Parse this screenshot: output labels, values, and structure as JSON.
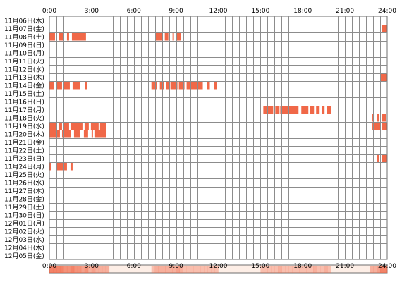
{
  "chart_data": {
    "type": "heatmap",
    "title": "",
    "xlabel": "",
    "ylabel": "",
    "xlim": [
      0,
      24
    ],
    "grid": true,
    "hour_ticks": [
      "0:00",
      "3:00",
      "6:00",
      "9:00",
      "12:00",
      "15:00",
      "18:00",
      "21:00",
      "24:00"
    ],
    "rows": [
      "11月06日(木)",
      "11月07日(金)",
      "11月08日(土)",
      "11月09日(日)",
      "11月10日(月)",
      "11月11日(火)",
      "11月12日(水)",
      "11月13日(木)",
      "11月14日(金)",
      "11月15日(土)",
      "11月16日(日)",
      "11月17日(月)",
      "11月18日(火)",
      "11月19日(水)",
      "11月20日(木)",
      "11月21日(金)",
      "11月22日(土)",
      "11月23日(日)",
      "11月24日(月)",
      "11月25日(火)",
      "11月26日(水)",
      "11月27日(木)",
      "11月28日(金)",
      "11月29日(土)",
      "11月30日(日)",
      "12月01日(月)",
      "12月02日(火)",
      "12月03日(水)",
      "12月04日(木)",
      "12月05日(金)"
    ],
    "activity": [
      [],
      [
        [
          23.6,
          24.0
        ]
      ],
      [
        [
          0.0,
          0.4
        ],
        [
          0.7,
          1.0
        ],
        [
          1.25,
          1.4
        ],
        [
          1.6,
          2.6
        ],
        [
          7.55,
          8.0
        ],
        [
          8.2,
          8.45
        ],
        [
          8.75,
          8.85
        ],
        [
          9.0,
          9.35
        ]
      ],
      [],
      [],
      [],
      [],
      [
        [
          23.55,
          24.0
        ]
      ],
      [
        [
          0.0,
          0.3
        ],
        [
          0.55,
          0.9
        ],
        [
          1.05,
          1.45
        ],
        [
          1.65,
          2.2
        ],
        [
          2.55,
          2.7
        ],
        [
          7.25,
          7.65
        ],
        [
          7.85,
          8.15
        ],
        [
          8.3,
          8.55
        ],
        [
          8.6,
          9.1
        ],
        [
          9.2,
          9.6
        ],
        [
          9.75,
          10.9
        ],
        [
          11.2,
          11.4
        ],
        [
          11.7,
          11.9
        ]
      ],
      [],
      [],
      [
        [
          15.2,
          15.9
        ],
        [
          16.05,
          16.35
        ],
        [
          16.4,
          17.7
        ],
        [
          17.9,
          18.4
        ],
        [
          18.5,
          18.8
        ],
        [
          18.95,
          19.2
        ],
        [
          19.35,
          19.55
        ],
        [
          19.7,
          20.0
        ]
      ],
      [
        [
          22.95,
          23.1
        ],
        [
          23.3,
          23.45
        ],
        [
          23.6,
          23.95
        ]
      ],
      [
        [
          0.0,
          0.5
        ],
        [
          0.65,
          0.9
        ],
        [
          1.0,
          1.4
        ],
        [
          1.5,
          2.35
        ],
        [
          2.5,
          2.8
        ],
        [
          2.95,
          3.5
        ],
        [
          3.6,
          4.05
        ],
        [
          22.95,
          23.5
        ],
        [
          23.65,
          24.0
        ]
      ],
      [
        [
          0.0,
          0.75
        ],
        [
          0.9,
          1.55
        ],
        [
          1.75,
          2.2
        ],
        [
          2.45,
          2.75
        ],
        [
          3.0,
          3.1
        ],
        [
          3.2,
          4.05
        ]
      ],
      [],
      [],
      [
        [
          23.3,
          23.45
        ],
        [
          23.6,
          24.0
        ]
      ],
      [
        [
          0.0,
          0.15
        ],
        [
          0.45,
          1.25
        ],
        [
          1.5,
          1.65
        ]
      ],
      [],
      [],
      [],
      [],
      [],
      [],
      [],
      [],
      [],
      [],
      []
    ],
    "colors": {
      "background": "#ffffff",
      "grid": "#8c8c8c",
      "border": "#6e6e6e",
      "active": "#f06848",
      "active_light": "#ffd8c4",
      "summary_light": "#fdeee6"
    }
  }
}
